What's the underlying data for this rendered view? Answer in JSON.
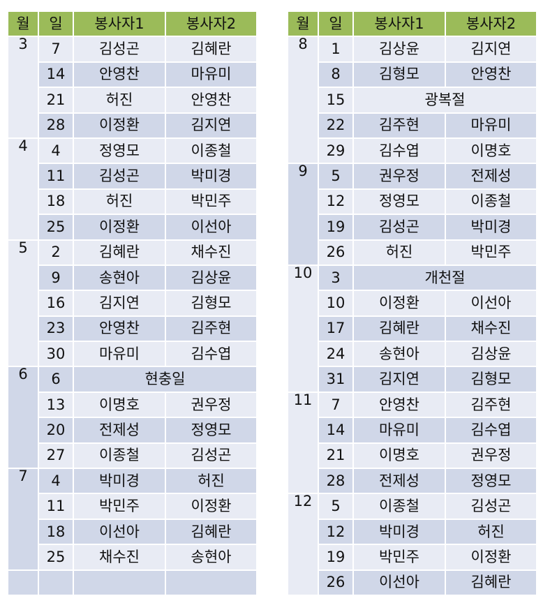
{
  "headers": {
    "month": "월",
    "day": "일",
    "v1": "봉사자1",
    "v2": "봉사자2"
  },
  "left": [
    {
      "month": "3",
      "shade": "light",
      "rows": [
        {
          "day": "7",
          "v1": "김성곤",
          "v2": "김혜란",
          "shade": "light"
        },
        {
          "day": "14",
          "v1": "안영찬",
          "v2": "마유미",
          "shade": "dark"
        },
        {
          "day": "21",
          "v1": "허진",
          "v2": "안영찬",
          "shade": "light"
        },
        {
          "day": "28",
          "v1": "이정환",
          "v2": "김지연",
          "shade": "dark"
        }
      ]
    },
    {
      "month": "4",
      "shade": "light",
      "rows": [
        {
          "day": "4",
          "v1": "정영모",
          "v2": "이종철",
          "shade": "light"
        },
        {
          "day": "11",
          "v1": "김성곤",
          "v2": "박미경",
          "shade": "dark"
        },
        {
          "day": "18",
          "v1": "허진",
          "v2": "박민주",
          "shade": "light"
        },
        {
          "day": "25",
          "v1": "이정환",
          "v2": "이선아",
          "shade": "dark"
        }
      ]
    },
    {
      "month": "5",
      "shade": "light",
      "rows": [
        {
          "day": "2",
          "v1": "김혜란",
          "v2": "채수진",
          "shade": "light"
        },
        {
          "day": "9",
          "v1": "송현아",
          "v2": "김상윤",
          "shade": "dark"
        },
        {
          "day": "16",
          "v1": "김지연",
          "v2": "김형모",
          "shade": "light"
        },
        {
          "day": "23",
          "v1": "안영찬",
          "v2": "김주현",
          "shade": "dark"
        },
        {
          "day": "30",
          "v1": "마유미",
          "v2": "김수엽",
          "shade": "light"
        }
      ]
    },
    {
      "month": "6",
      "shade": "dark",
      "rows": [
        {
          "day": "6",
          "holiday": "현충일",
          "shade": "dark"
        },
        {
          "day": "13",
          "v1": "이명호",
          "v2": "권우정",
          "shade": "light"
        },
        {
          "day": "20",
          "v1": "전제성",
          "v2": "정영모",
          "shade": "dark"
        },
        {
          "day": "27",
          "v1": "이종철",
          "v2": "김성곤",
          "shade": "light"
        }
      ]
    },
    {
      "month": "7",
      "shade": "dark",
      "rows": [
        {
          "day": "4",
          "v1": "박미경",
          "v2": "허진",
          "shade": "dark"
        },
        {
          "day": "11",
          "v1": "박민주",
          "v2": "이정환",
          "shade": "light"
        },
        {
          "day": "18",
          "v1": "이선아",
          "v2": "김혜란",
          "shade": "dark"
        },
        {
          "day": "25",
          "v1": "채수진",
          "v2": "송현아",
          "shade": "light"
        }
      ]
    }
  ],
  "right": [
    {
      "month": "8",
      "shade": "light",
      "rows": [
        {
          "day": "1",
          "v1": "김상윤",
          "v2": "김지연",
          "shade": "light"
        },
        {
          "day": "8",
          "v1": "김형모",
          "v2": "안영찬",
          "shade": "dark"
        },
        {
          "day": "15",
          "holiday": "광복절",
          "shade": "light"
        },
        {
          "day": "22",
          "v1": "김주현",
          "v2": "마유미",
          "shade": "dark"
        },
        {
          "day": "29",
          "v1": "김수엽",
          "v2": "이명호",
          "shade": "light"
        }
      ]
    },
    {
      "month": "9",
      "shade": "dark",
      "rows": [
        {
          "day": "5",
          "v1": "권우정",
          "v2": "전제성",
          "shade": "dark"
        },
        {
          "day": "12",
          "v1": "정영모",
          "v2": "이종철",
          "shade": "light"
        },
        {
          "day": "19",
          "v1": "김성곤",
          "v2": "박미경",
          "shade": "dark"
        },
        {
          "day": "26",
          "v1": "허진",
          "v2": "박민주",
          "shade": "light"
        }
      ]
    },
    {
      "month": "10",
      "shade": "light",
      "rows": [
        {
          "day": "3",
          "holiday": "개천절",
          "shade": "dark"
        },
        {
          "day": "10",
          "v1": "이정환",
          "v2": "이선아",
          "shade": "light"
        },
        {
          "day": "17",
          "v1": "김혜란",
          "v2": "채수진",
          "shade": "dark"
        },
        {
          "day": "24",
          "v1": "송현아",
          "v2": "김상윤",
          "shade": "light"
        },
        {
          "day": "31",
          "v1": "김지연",
          "v2": "김형모",
          "shade": "dark"
        }
      ]
    },
    {
      "month": "11",
      "shade": "light",
      "rows": [
        {
          "day": "7",
          "v1": "안영찬",
          "v2": "김주현",
          "shade": "light"
        },
        {
          "day": "14",
          "v1": "마유미",
          "v2": "김수엽",
          "shade": "dark"
        },
        {
          "day": "21",
          "v1": "이명호",
          "v2": "권우정",
          "shade": "light"
        },
        {
          "day": "28",
          "v1": "전제성",
          "v2": "정영모",
          "shade": "dark"
        }
      ]
    },
    {
      "month": "12",
      "shade": "light",
      "rows": [
        {
          "day": "5",
          "v1": "이종철",
          "v2": "김성곤",
          "shade": "light"
        },
        {
          "day": "12",
          "v1": "박미경",
          "v2": "허진",
          "shade": "dark"
        },
        {
          "day": "19",
          "v1": "박민주",
          "v2": "이정환",
          "shade": "light"
        },
        {
          "day": "26",
          "v1": "이선아",
          "v2": "김혜란",
          "shade": "dark"
        }
      ]
    }
  ],
  "colors": {
    "header_bg": "#9bbb59",
    "row_light": "#e8ebf4",
    "row_dark": "#d0d7e8"
  }
}
